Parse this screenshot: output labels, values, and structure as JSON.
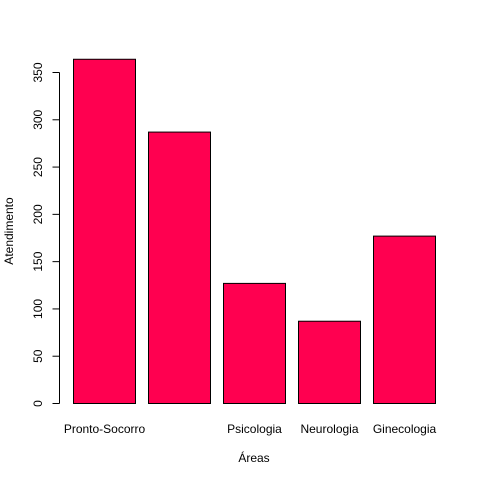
{
  "chart_data": {
    "type": "bar",
    "categories": [
      "Pronto-Socorro",
      "",
      "Psicologia",
      "Neurologia",
      "Ginecologia"
    ],
    "values": [
      364,
      287,
      127,
      87,
      177
    ],
    "xlabel": "Áreas",
    "ylabel": "Atendimento",
    "ylim": [
      0,
      350
    ],
    "yticks": [
      "0",
      "50",
      "100",
      "150",
      "200",
      "250",
      "300",
      "350"
    ],
    "bar_color": "#ff0050",
    "bar_border_color": "#000000",
    "grid": false,
    "legend": "none"
  }
}
